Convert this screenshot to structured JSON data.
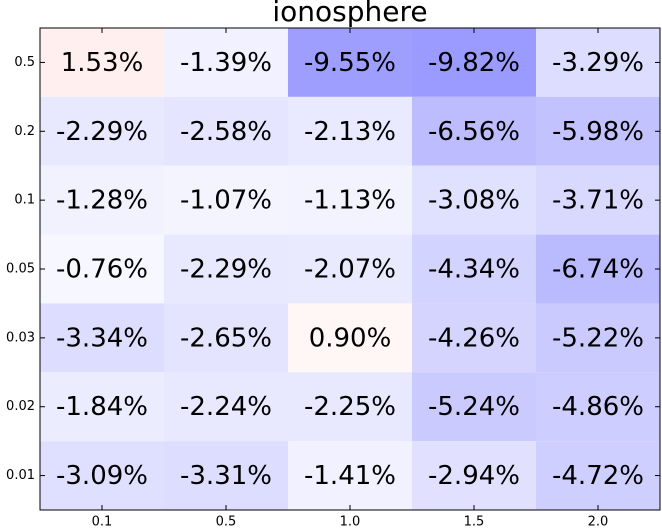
{
  "chart_data": {
    "type": "heatmap",
    "title": "ionosphere",
    "x_categories": [
      "0.1",
      "0.5",
      "1.0",
      "1.5",
      "2.0"
    ],
    "y_categories": [
      "0.5",
      "0.2",
      "0.1",
      "0.05",
      "0.03",
      "0.02",
      "0.01"
    ],
    "values": [
      [
        1.53,
        -1.39,
        -9.55,
        -9.82,
        -3.29
      ],
      [
        -2.29,
        -2.58,
        -2.13,
        -6.56,
        -5.98
      ],
      [
        -1.28,
        -1.07,
        -1.13,
        -3.08,
        -3.71
      ],
      [
        -0.76,
        -2.29,
        -2.07,
        -4.34,
        -6.74
      ],
      [
        -3.34,
        -2.65,
        0.9,
        -4.26,
        -5.22
      ],
      [
        -1.84,
        -2.24,
        -2.25,
        -5.24,
        -4.86
      ],
      [
        -3.09,
        -3.31,
        -1.41,
        -2.94,
        -4.72
      ]
    ],
    "value_labels": [
      [
        "1.53%",
        "-1.39%",
        "-9.55%",
        "-9.82%",
        "-3.29%"
      ],
      [
        "-2.29%",
        "-2.58%",
        "-2.13%",
        "-6.56%",
        "-5.98%"
      ],
      [
        "-1.28%",
        "-1.07%",
        "-1.13%",
        "-3.08%",
        "-3.71%"
      ],
      [
        "-0.76%",
        "-2.29%",
        "-2.07%",
        "-4.34%",
        "-6.74%"
      ],
      [
        "-3.34%",
        "-2.65%",
        "0.90%",
        "-4.26%",
        "-5.22%"
      ],
      [
        "-1.84%",
        "-2.24%",
        "-2.25%",
        "-5.24%",
        "-4.86%"
      ],
      [
        "-3.09%",
        "-3.31%",
        "-1.41%",
        "-2.94%",
        "-4.72%"
      ]
    ],
    "colormap": [
      "#0000ff",
      "#ffffff",
      "#ff0000"
    ],
    "clim": [
      -25,
      25
    ]
  }
}
